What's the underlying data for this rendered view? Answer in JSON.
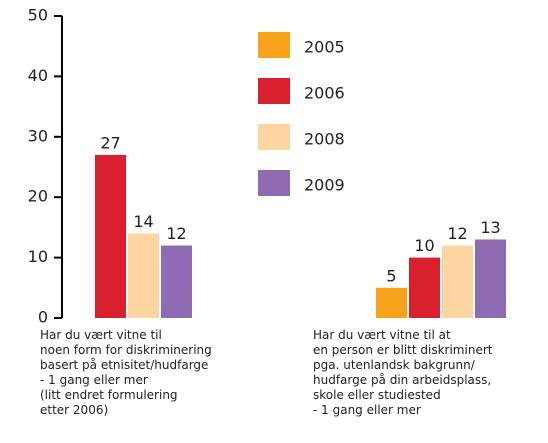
{
  "chart_data": {
    "type": "bar",
    "categories": [
      "Har du vært vitne til\nnoen form for diskriminering\nbasert på etnisitet/hudfarge\n- 1 gang eller mer\n(litt endret formulering\netter 2006)",
      "Har du vært vitne til at\nen person er blitt diskriminert\npga. utenlandsk bakgrunn/\nhudfarge på din arbeidsplass,\nskole eller studiested\n- 1 gang eller mer"
    ],
    "series": [
      {
        "name": "2005",
        "color": "#f7a21b",
        "values": [
          null,
          5
        ]
      },
      {
        "name": "2006",
        "color": "#d9202f",
        "values": [
          27,
          10
        ]
      },
      {
        "name": "2008",
        "color": "#fcd5a0",
        "values": [
          14,
          12
        ]
      },
      {
        "name": "2009",
        "color": "#8e6bb3",
        "values": [
          12,
          13
        ]
      }
    ],
    "ylim": [
      0,
      50
    ],
    "yticks": [
      0,
      10,
      20,
      30,
      40,
      50
    ],
    "grid": false,
    "legend": "top"
  }
}
